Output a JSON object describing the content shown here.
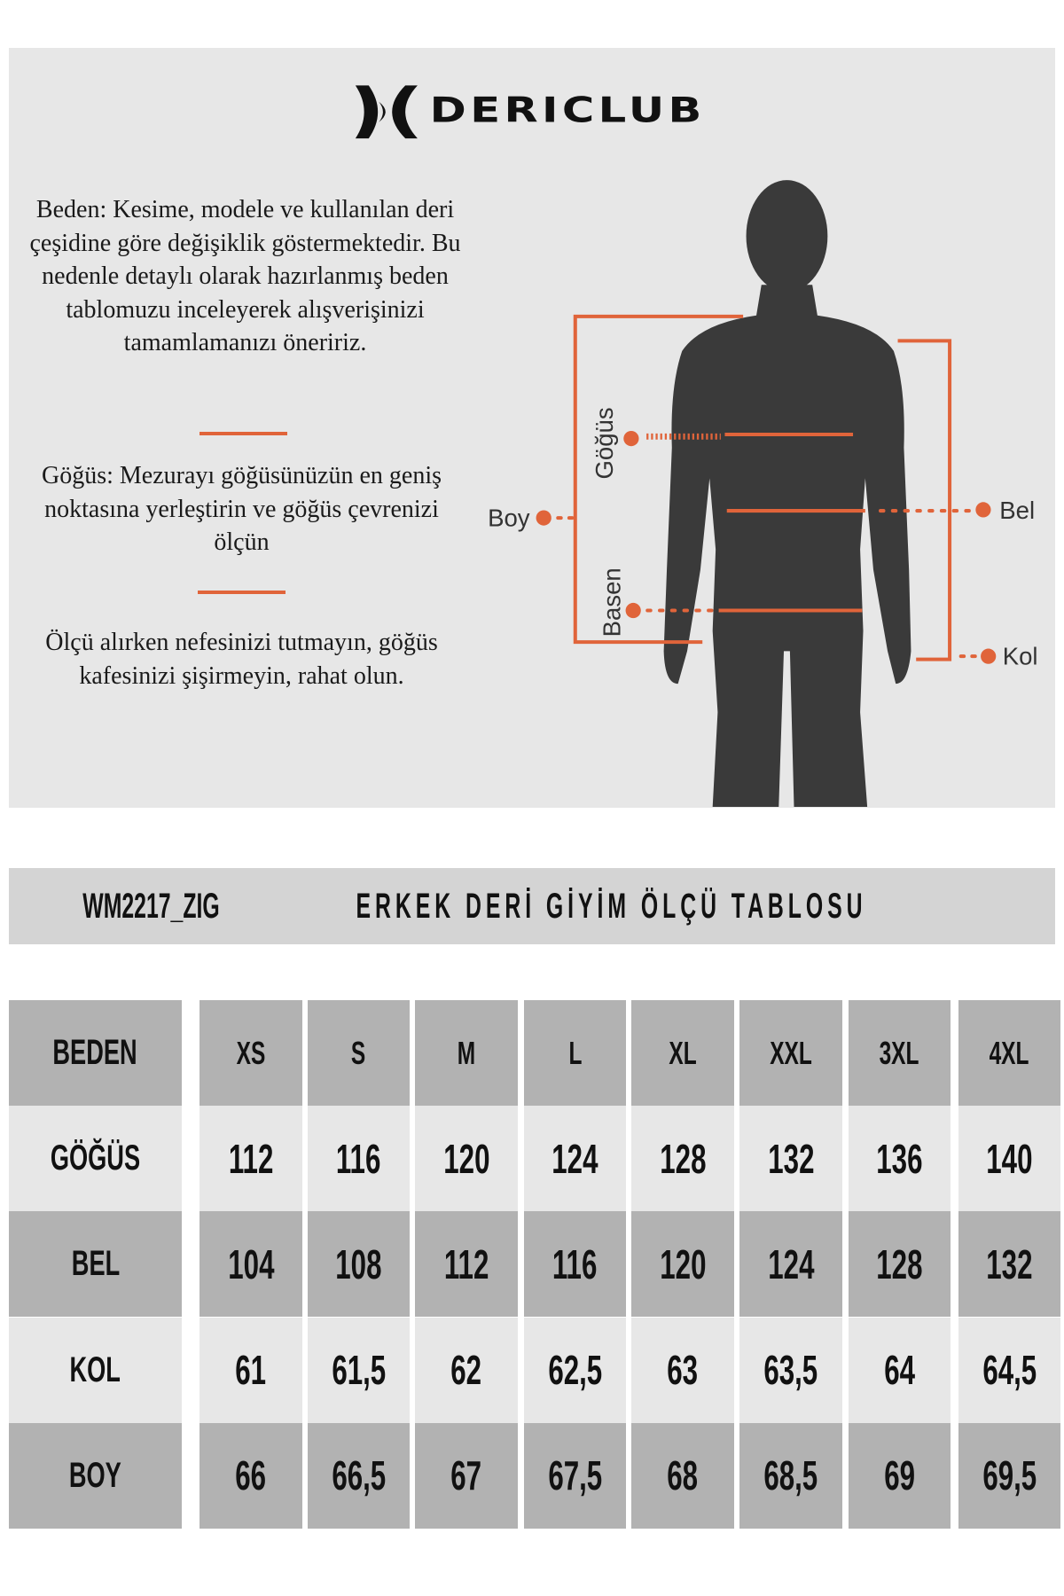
{
  "brand": {
    "logo_text": "DERICLUB"
  },
  "colors": {
    "accent": "#e0643a",
    "panel_bg": "#e7e7e7",
    "header_row": "#b2b2b2",
    "light_row": "#e7e7e7",
    "title_bar": "#d4d4d4",
    "silhouette": "#3a3a3a"
  },
  "info": {
    "beden_text": "Beden: Kesime, modele ve kullanılan deri çeşidine göre değişiklik göstermektedir. Bu nedenle detaylı olarak hazırlanmış beden tablomuzu inceleyerek alışverişinizi tamamlamanızı öneririz.",
    "gogus_text": "Göğüs: Mezurayı göğüsünüzün en geniş noktasına yerleştirin ve göğüs çevrenizi ölçün",
    "tip_text": "Ölçü alırken nefesinizi tutmayın, göğüs kafesinizi şişirmeyin, rahat olun."
  },
  "diagram": {
    "labels": {
      "boy": "Boy",
      "gogus": "Göğüs",
      "bel": "Bel",
      "basen": "Basen",
      "kol": "Kol"
    }
  },
  "table": {
    "title_code": "WM2217_ZIG",
    "title_text": "ERKEK DERİ GİYİM ÖLÇÜ TABLOSU",
    "header": [
      "BEDEN",
      "XS",
      "S",
      "M",
      "L",
      "XL",
      "XXL",
      "3XL",
      "4XL"
    ],
    "rows": [
      {
        "label": "GÖĞÜS",
        "values": [
          "112",
          "116",
          "120",
          "124",
          "128",
          "132",
          "136",
          "140"
        ]
      },
      {
        "label": "BEL",
        "values": [
          "104",
          "108",
          "112",
          "116",
          "120",
          "124",
          "128",
          "132"
        ]
      },
      {
        "label": "KOL",
        "values": [
          "61",
          "61,5",
          "62",
          "62,5",
          "63",
          "63,5",
          "64",
          "64,5"
        ]
      },
      {
        "label": "BOY",
        "values": [
          "66",
          "66,5",
          "67",
          "67,5",
          "68",
          "68,5",
          "69",
          "69,5"
        ]
      }
    ]
  }
}
